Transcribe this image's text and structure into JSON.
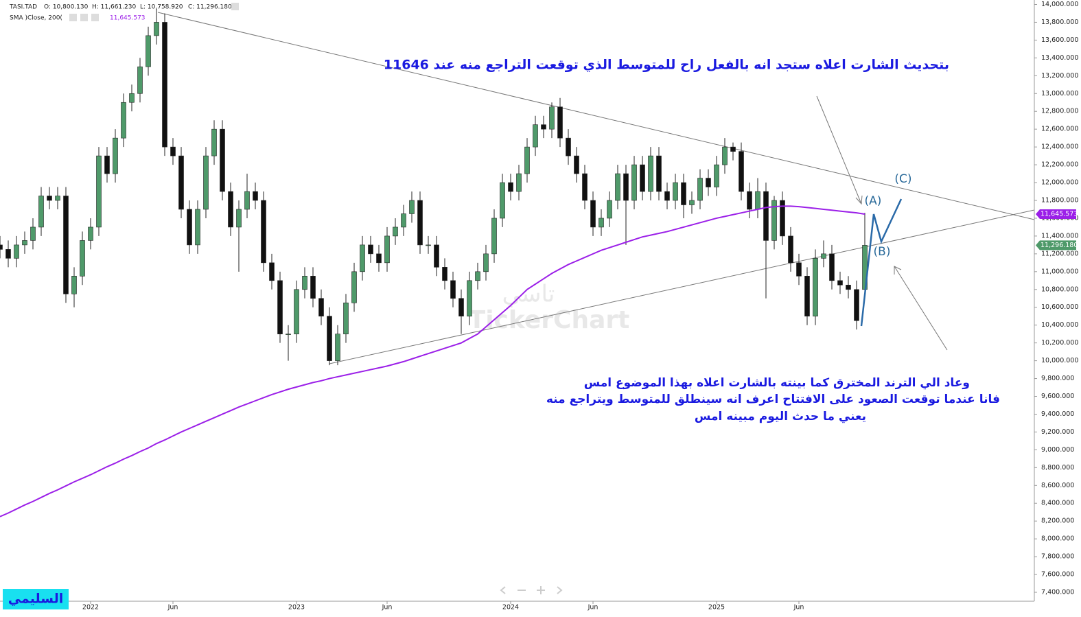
{
  "chart_data": {
    "type": "candlestick",
    "header": {
      "symbol": "TASI.TAD",
      "open": "O: 10,800.130",
      "high": "H: 11,661.230",
      "low": "L: 10,758.920",
      "close": "C: 11,296.180",
      "sma_name": "SMA  )Close, 200(",
      "sma_value": "11,645.573"
    },
    "annotation_top": "بتحديث الشارت اعلاه ستجد انه بالفعل راح للمتوسط الذي توقعت التراجع منه عند 11646",
    "annotation_bottom": [
      "وعاد الي الترند المخترق كما بينته بالشارت اعلاه بهذا الموضوع امس",
      "فانا عندما توقعت  الصعود على الافتتاح اعرف انه سينطلق للمتوسط ويتراجع منه",
      "يعني ما حدث اليوم مبينه امس"
    ],
    "wave_labels": [
      "(A)",
      "(B)",
      "(C)"
    ],
    "watermark": [
      "تاسي",
      "TickerChart"
    ],
    "author": "السليمي",
    "up_color": "#4f9a6a",
    "down_color": "#111111",
    "categories": [
      null,
      null,
      null,
      null,
      null,
      null,
      null,
      null,
      null,
      null,
      null,
      "2022",
      null,
      null,
      null,
      null,
      null,
      null,
      null,
      null,
      null,
      "Jun",
      null,
      null,
      null,
      null,
      null,
      null,
      null,
      null,
      null,
      null,
      null,
      null,
      null,
      null,
      "2023",
      null,
      null,
      null,
      null,
      null,
      null,
      null,
      null,
      null,
      null,
      "Jun",
      null,
      null,
      null,
      null,
      null,
      null,
      null,
      null,
      null,
      null,
      null,
      null,
      null,
      null,
      "2024",
      null,
      null,
      null,
      null,
      null,
      null,
      null,
      null,
      null,
      "Jun",
      null,
      null,
      null,
      null,
      null,
      null,
      null,
      null,
      null,
      null,
      null,
      null,
      null,
      null,
      "2025",
      null,
      null,
      null,
      null,
      null,
      null,
      null,
      null,
      null,
      "Jun",
      null,
      null,
      null,
      null,
      null,
      null,
      null,
      null
    ],
    "open": [
      11300,
      11250,
      11150,
      11300,
      11350,
      11500,
      11850,
      11800,
      11850,
      10750,
      10950,
      11350,
      11500,
      12300,
      12100,
      12500,
      12900,
      13000,
      13300,
      13650,
      13800,
      12400,
      12300,
      11700,
      11300,
      11700,
      12300,
      12600,
      11900,
      11500,
      11700,
      11900,
      11800,
      11100,
      10900,
      10300,
      10300,
      10800,
      10950,
      10700,
      10500,
      10000,
      10300,
      10650,
      11000,
      11300,
      11200,
      11100,
      11400,
      11500,
      11650,
      11800,
      11300,
      11300,
      11050,
      10900,
      10700,
      10500,
      10900,
      11000,
      11200,
      11600,
      12000,
      11900,
      12100,
      12400,
      12650,
      12600,
      12850,
      12500,
      12300,
      12100,
      11800,
      11500,
      11600,
      11800,
      12100,
      11800,
      12200,
      11900,
      12300,
      11900,
      11800,
      12000,
      11750,
      11800,
      12050,
      11950,
      12200,
      12400,
      12350,
      11900,
      11700,
      11900,
      11350,
      11800,
      11400,
      11100,
      10950,
      10500,
      11150,
      11200,
      10900,
      10850,
      10800,
      10800.13
    ],
    "high": [
      11400,
      11350,
      11400,
      11450,
      11600,
      11950,
      11950,
      11950,
      11950,
      11050,
      11450,
      11600,
      12400,
      12400,
      12600,
      13000,
      13100,
      13400,
      13750,
      13950,
      13900,
      12500,
      12400,
      11800,
      11800,
      12400,
      12700,
      12700,
      12000,
      11800,
      12100,
      12000,
      11900,
      11200,
      11000,
      10400,
      10900,
      11050,
      11050,
      10800,
      10600,
      10400,
      10750,
      11100,
      11400,
      11400,
      11300,
      11500,
      11600,
      11750,
      11900,
      11900,
      11400,
      11400,
      11150,
      11000,
      10800,
      11000,
      11100,
      11300,
      11700,
      12100,
      12100,
      12200,
      12500,
      12750,
      12750,
      12900,
      12950,
      12600,
      12400,
      12200,
      11900,
      11700,
      11900,
      12200,
      12200,
      12300,
      12300,
      12400,
      12400,
      12000,
      12100,
      12100,
      11900,
      12150,
      12150,
      12300,
      12500,
      12450,
      12450,
      12000,
      12050,
      12000,
      11850,
      11900,
      11500,
      11200,
      11050,
      11250,
      11350,
      11300,
      11000,
      10950,
      10900,
      11661.23
    ],
    "low": [
      11150,
      11050,
      11050,
      11200,
      11250,
      11400,
      11700,
      11700,
      10650,
      10600,
      10850,
      11250,
      11400,
      12000,
      12000,
      12400,
      12800,
      12900,
      13200,
      13550,
      12300,
      12200,
      11600,
      11200,
      11200,
      11600,
      12200,
      11800,
      11400,
      11000,
      11600,
      11700,
      11000,
      10800,
      10200,
      10000,
      10200,
      10700,
      10600,
      10400,
      9950,
      9950,
      10200,
      10550,
      10900,
      11100,
      11000,
      11000,
      11300,
      11400,
      11550,
      11200,
      11200,
      10950,
      10800,
      10600,
      10300,
      10400,
      10800,
      10900,
      11100,
      11500,
      11800,
      11800,
      12000,
      12300,
      12500,
      12500,
      12400,
      12200,
      12000,
      11700,
      11400,
      11400,
      11500,
      11700,
      11300,
      11700,
      11800,
      11800,
      11800,
      11700,
      11700,
      11600,
      11650,
      11700,
      11850,
      11850,
      12100,
      12250,
      11800,
      11600,
      11600,
      10700,
      11250,
      11300,
      11000,
      10850,
      10400,
      10400,
      11050,
      10800,
      10750,
      10700,
      10350,
      10758.92
    ],
    "close": [
      11250,
      11150,
      11300,
      11350,
      11500,
      11850,
      11800,
      11850,
      10750,
      10950,
      11350,
      11500,
      12300,
      12100,
      12500,
      12900,
      13000,
      13300,
      13650,
      13800,
      12400,
      12300,
      11700,
      11300,
      11700,
      12300,
      12600,
      11900,
      11500,
      11700,
      11900,
      11800,
      11100,
      10900,
      10300,
      10300,
      10800,
      10950,
      10700,
      10500,
      10000,
      10300,
      10650,
      11000,
      11300,
      11200,
      11100,
      11400,
      11500,
      11650,
      11800,
      11300,
      11300,
      11050,
      10900,
      10700,
      10500,
      10900,
      11000,
      11200,
      11600,
      12000,
      11900,
      12100,
      12400,
      12650,
      12600,
      12850,
      12500,
      12300,
      12100,
      11800,
      11500,
      11600,
      11800,
      12100,
      11800,
      12200,
      11900,
      12300,
      11900,
      11800,
      12000,
      11750,
      11800,
      12050,
      11950,
      12200,
      12400,
      12350,
      11900,
      11700,
      11900,
      11350,
      11800,
      11400,
      11100,
      10950,
      10500,
      11150,
      11200,
      10900,
      10850,
      10800,
      10450,
      11296.18
    ],
    "series": [
      {
        "name": "SMA  )Close, 200(",
        "color": "#9b1fe8",
        "values": [
          8250,
          8290,
          8335,
          8380,
          8420,
          8465,
          8510,
          8550,
          8595,
          8640,
          8680,
          8720,
          8765,
          8810,
          8850,
          8895,
          8935,
          8980,
          9020,
          9070,
          9110,
          9155,
          9200,
          9240,
          9280,
          9320,
          9360,
          9400,
          9440,
          9480,
          9515,
          9550,
          9585,
          9620,
          9650,
          9680,
          9705,
          9730,
          9755,
          9775,
          9800,
          9820,
          9840,
          9860,
          9880,
          9900,
          9920,
          9940,
          9965,
          9990,
          10020,
          10050,
          10080,
          10110,
          10140,
          10170,
          10200,
          10250,
          10300,
          10380,
          10460,
          10540,
          10620,
          10710,
          10800,
          10860,
          10920,
          10980,
          11030,
          11080,
          11120,
          11160,
          11200,
          11240,
          11270,
          11300,
          11330,
          11360,
          11390,
          11410,
          11430,
          11450,
          11475,
          11500,
          11525,
          11550,
          11575,
          11600,
          11620,
          11640,
          11660,
          11680,
          11700,
          11720,
          11730,
          11735,
          11735,
          11730,
          11720,
          11710,
          11700,
          11690,
          11680,
          11670,
          11660,
          11645.573
        ]
      }
    ],
    "last_close_label": "11,296.180",
    "sma_last_label": "11,645.573",
    "ylim": [
      7300,
      14050
    ],
    "yticks": [
      {
        "value": 14000,
        "label": "14,000.000"
      },
      {
        "value": 13800,
        "label": "13,800.000"
      },
      {
        "value": 13600,
        "label": "13,600.000"
      },
      {
        "value": 13400,
        "label": "13,400.000"
      },
      {
        "value": 13200,
        "label": "13,200.000"
      },
      {
        "value": 13000,
        "label": "13,000.000"
      },
      {
        "value": 12800,
        "label": "12,800.000"
      },
      {
        "value": 12600,
        "label": "12,600.000"
      },
      {
        "value": 12400,
        "label": "12,400.000"
      },
      {
        "value": 12200,
        "label": "12,200.000"
      },
      {
        "value": 12000,
        "label": "12,000.000"
      },
      {
        "value": 11800,
        "label": "11,800.000"
      },
      {
        "value": 11600,
        "label": "11,600.000"
      },
      {
        "value": 11400,
        "label": "11,400.000"
      },
      {
        "value": 11200,
        "label": "11,200.000"
      },
      {
        "value": 11000,
        "label": "11,000.000"
      },
      {
        "value": 10800,
        "label": "10,800.000"
      },
      {
        "value": 10600,
        "label": "10,600.000"
      },
      {
        "value": 10400,
        "label": "10,400.000"
      },
      {
        "value": 10200,
        "label": "10,200.000"
      },
      {
        "value": 10000,
        "label": "10,000.000"
      },
      {
        "value": 9800,
        "label": "9,800.000"
      },
      {
        "value": 9600,
        "label": "9,600.000"
      },
      {
        "value": 9400,
        "label": "9,400.000"
      },
      {
        "value": 9200,
        "label": "9,200.000"
      },
      {
        "value": 9000,
        "label": "9,000.000"
      },
      {
        "value": 8800,
        "label": "8,800.000"
      },
      {
        "value": 8600,
        "label": "8,600.000"
      },
      {
        "value": 8400,
        "label": "8,400.000"
      },
      {
        "value": 8200,
        "label": "8,200.000"
      },
      {
        "value": 8000,
        "label": "8,000.000"
      },
      {
        "value": 7800,
        "label": "7,800.000"
      },
      {
        "value": 7600,
        "label": "7,600.000"
      },
      {
        "value": 7400,
        "label": "7,400.000"
      }
    ],
    "grid": false
  }
}
